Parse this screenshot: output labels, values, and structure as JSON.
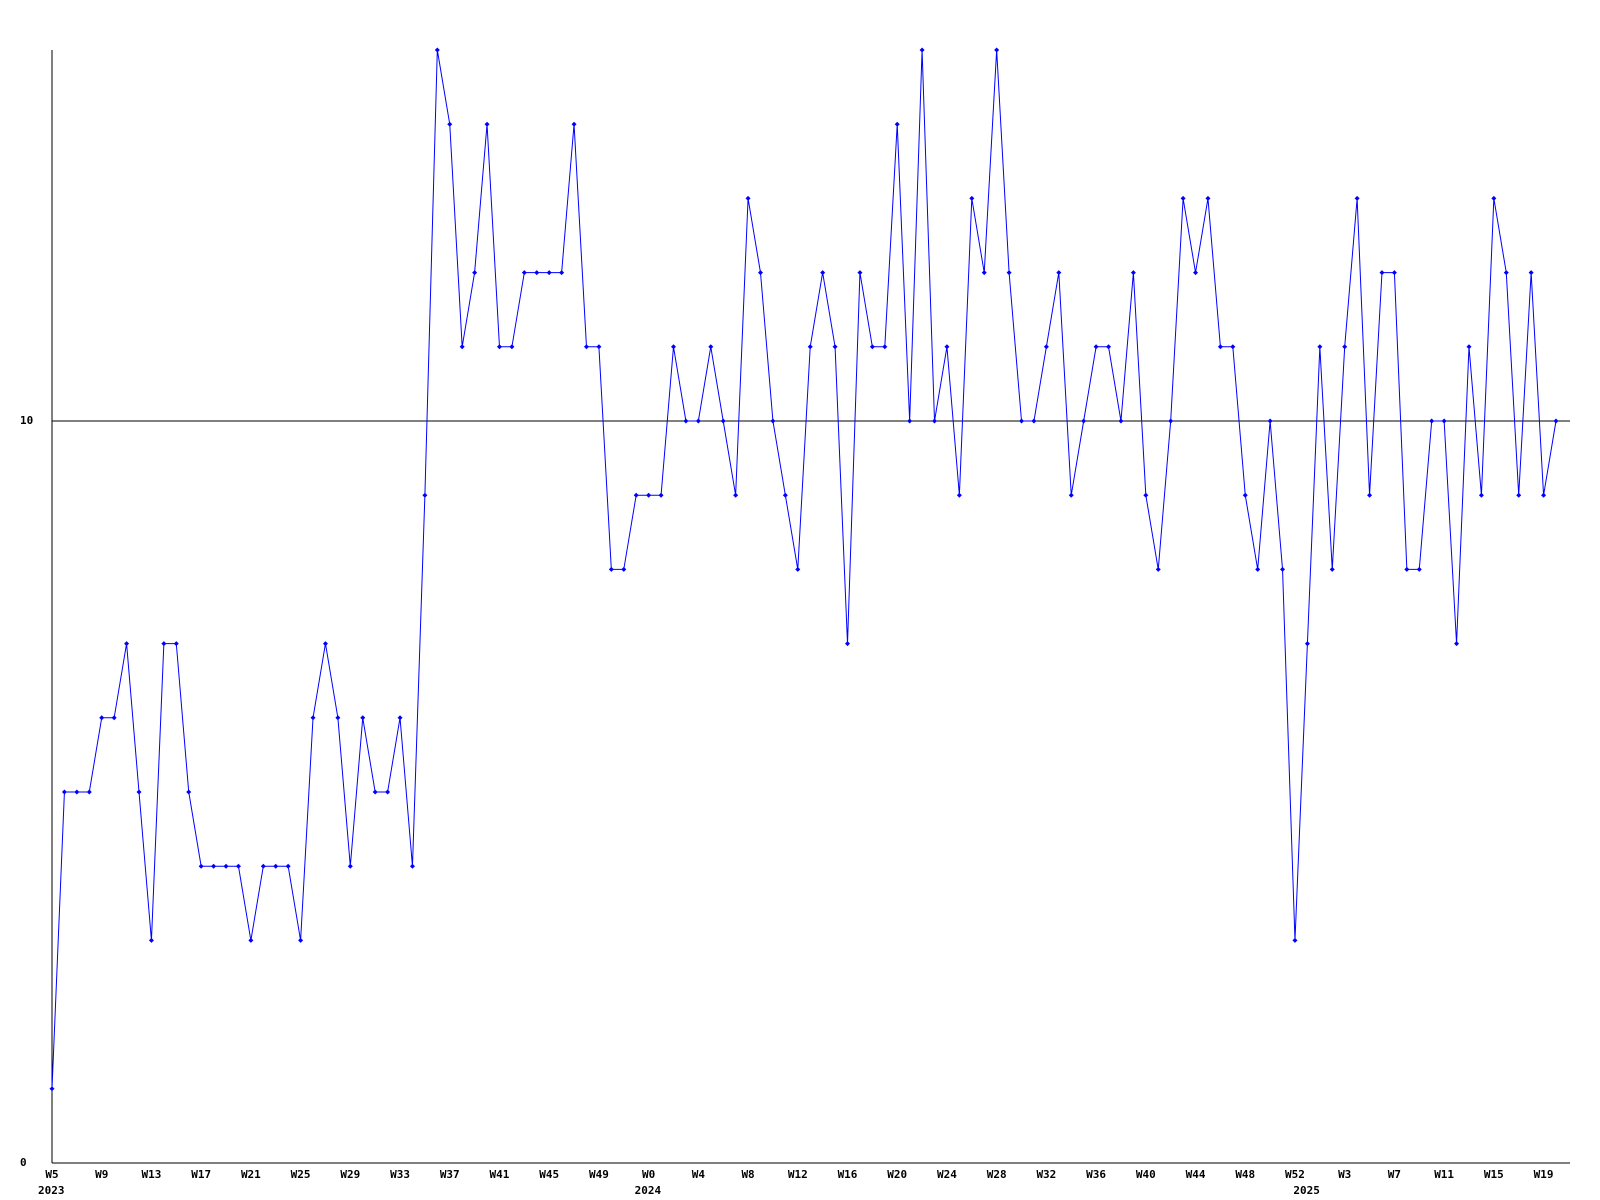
{
  "chart_data": {
    "type": "line",
    "categories": [
      "W5",
      null,
      null,
      null,
      "W9",
      null,
      null,
      null,
      "W13",
      null,
      null,
      null,
      "W17",
      null,
      null,
      null,
      "W21",
      null,
      null,
      null,
      "W25",
      null,
      null,
      null,
      "W29",
      null,
      null,
      null,
      "W33",
      null,
      null,
      null,
      "W37",
      null,
      null,
      null,
      "W41",
      null,
      null,
      null,
      "W45",
      null,
      null,
      null,
      "W49",
      null,
      null,
      null,
      "W0",
      null,
      null,
      null,
      "W4",
      null,
      null,
      null,
      "W8",
      null,
      null,
      null,
      "W12",
      null,
      null,
      null,
      "W16",
      null,
      null,
      null,
      "W20",
      null,
      null,
      null,
      "W24",
      null,
      null,
      null,
      "W28",
      null,
      null,
      null,
      "W32",
      null,
      null,
      null,
      "W36",
      null,
      null,
      null,
      "W40",
      null,
      null,
      null,
      "W44",
      null,
      null,
      null,
      "W48",
      null,
      null,
      null,
      "W52",
      null,
      null,
      null,
      "W3",
      null,
      null,
      null,
      "W7",
      null,
      null,
      null,
      "W11",
      null,
      null,
      null,
      "W15",
      null,
      null,
      null,
      "W19",
      null
    ],
    "year_labels": [
      "2023",
      null,
      null,
      null,
      null,
      null,
      null,
      null,
      null,
      null,
      null,
      null,
      null,
      null,
      null,
      null,
      null,
      null,
      null,
      null,
      null,
      null,
      null,
      null,
      null,
      null,
      null,
      null,
      null,
      null,
      null,
      null,
      null,
      null,
      null,
      null,
      null,
      null,
      null,
      null,
      null,
      null,
      null,
      null,
      null,
      null,
      null,
      null,
      "2024",
      null,
      null,
      null,
      null,
      null,
      null,
      null,
      null,
      null,
      null,
      null,
      null,
      null,
      null,
      null,
      null,
      null,
      null,
      null,
      null,
      null,
      null,
      null,
      null,
      null,
      null,
      null,
      null,
      null,
      null,
      null,
      null,
      null,
      null,
      null,
      null,
      null,
      null,
      null,
      null,
      null,
      null,
      null,
      null,
      null,
      null,
      null,
      null,
      null,
      null,
      null,
      null,
      "2025",
      null,
      null,
      null,
      null,
      null,
      null,
      null,
      null,
      null,
      null,
      null,
      null,
      null,
      null,
      null,
      null,
      null,
      null,
      null,
      null
    ],
    "series": [
      {
        "color": "#0000ff",
        "values": [
          1,
          5,
          5,
          5,
          6,
          6,
          7,
          5,
          3,
          7,
          7,
          5,
          4,
          4,
          4,
          4,
          3,
          4,
          4,
          4,
          3,
          6,
          7,
          6,
          4,
          6,
          5,
          5,
          6,
          4,
          9,
          15,
          14,
          11,
          12,
          14,
          11,
          11,
          12,
          12,
          12,
          12,
          14,
          11,
          11,
          8,
          8,
          9,
          9,
          9,
          11,
          10,
          10,
          11,
          10,
          9,
          13,
          12,
          10,
          9,
          8,
          11,
          12,
          11,
          7,
          12,
          11,
          11,
          14,
          10,
          15,
          10,
          11,
          9,
          13,
          12,
          15,
          12,
          10,
          10,
          11,
          12,
          9,
          10,
          11,
          11,
          10,
          12,
          9,
          8,
          10,
          13,
          12,
          13,
          11,
          11,
          9,
          8,
          10,
          8,
          3,
          7,
          11,
          8,
          11,
          13,
          9,
          12,
          12,
          8,
          8,
          10,
          10,
          7,
          11,
          9,
          13,
          12,
          9,
          12,
          9,
          10
        ]
      }
    ],
    "ylim": [
      0,
      15
    ],
    "yticks": [
      0,
      10
    ],
    "grid": true
  }
}
